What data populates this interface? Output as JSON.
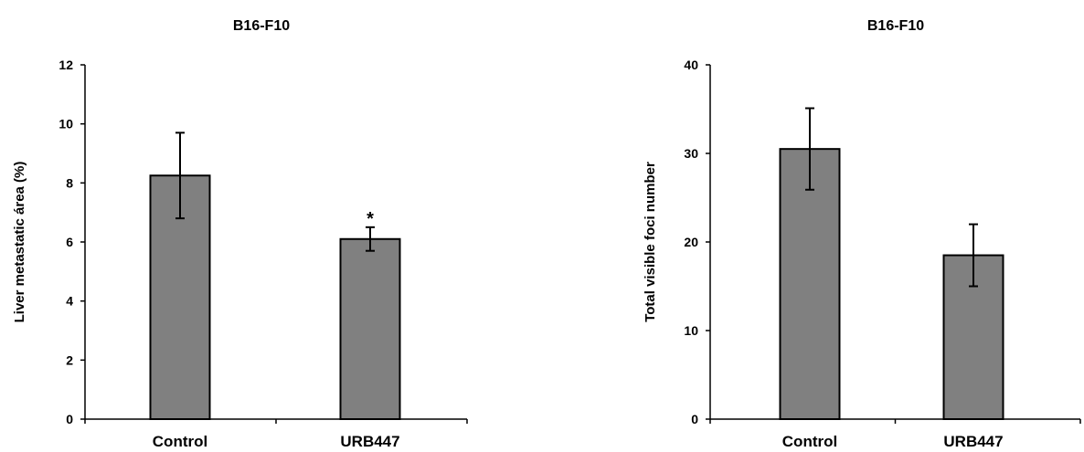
{
  "chart_data": [
    {
      "type": "bar",
      "title": "B16-F10",
      "xlabel": "",
      "ylabel": "Liver metastatic área (%)",
      "categories": [
        "Control",
        "URB447"
      ],
      "values": [
        8.25,
        6.1
      ],
      "errors": [
        1.45,
        0.4
      ],
      "ylim": [
        0,
        12
      ],
      "yticks": [
        0,
        2,
        4,
        6,
        8,
        10,
        12
      ],
      "annotations": [
        "",
        "*"
      ],
      "bar_color": "#808080",
      "grid": false,
      "legend": "none"
    },
    {
      "type": "bar",
      "title": "B16-F10",
      "xlabel": "",
      "ylabel": "Total visible foci number",
      "categories": [
        "Control",
        "URB447"
      ],
      "values": [
        30.5,
        18.5
      ],
      "errors": [
        4.6,
        3.5
      ],
      "ylim": [
        0,
        40
      ],
      "yticks": [
        0,
        10,
        20,
        30,
        40
      ],
      "annotations": [
        "",
        ""
      ],
      "bar_color": "#808080",
      "grid": false,
      "legend": "none"
    }
  ]
}
